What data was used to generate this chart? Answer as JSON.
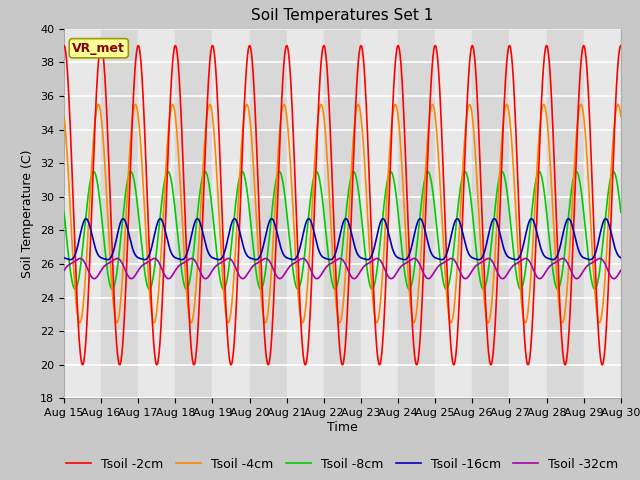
{
  "title": "Soil Temperatures Set 1",
  "xlabel": "Time",
  "ylabel": "Soil Temperature (C)",
  "ylim": [
    18,
    40
  ],
  "yticks": [
    18,
    20,
    22,
    24,
    26,
    28,
    30,
    32,
    34,
    36,
    38,
    40
  ],
  "x_tick_days": [
    15,
    16,
    17,
    18,
    19,
    20,
    21,
    22,
    23,
    24,
    25,
    26,
    27,
    28,
    29,
    30
  ],
  "colors": {
    "Tsoil -2cm": "#ff0000",
    "Tsoil -4cm": "#ff8800",
    "Tsoil -8cm": "#00cc00",
    "Tsoil -16cm": "#0000bb",
    "Tsoil -32cm": "#aa00aa"
  },
  "band_colors": [
    "#e8e8e8",
    "#d8d8d8"
  ],
  "fig_bg": "#c8c8c8",
  "plot_bg": "#ffffff",
  "grid_color": "#ffffff",
  "annotation_text": "VR_met",
  "annotation_fg": "#880000",
  "annotation_bg": "#ffff99",
  "annotation_border": "#999900",
  "title_fontsize": 11,
  "axis_label_fontsize": 9,
  "tick_fontsize": 8,
  "legend_fontsize": 9
}
